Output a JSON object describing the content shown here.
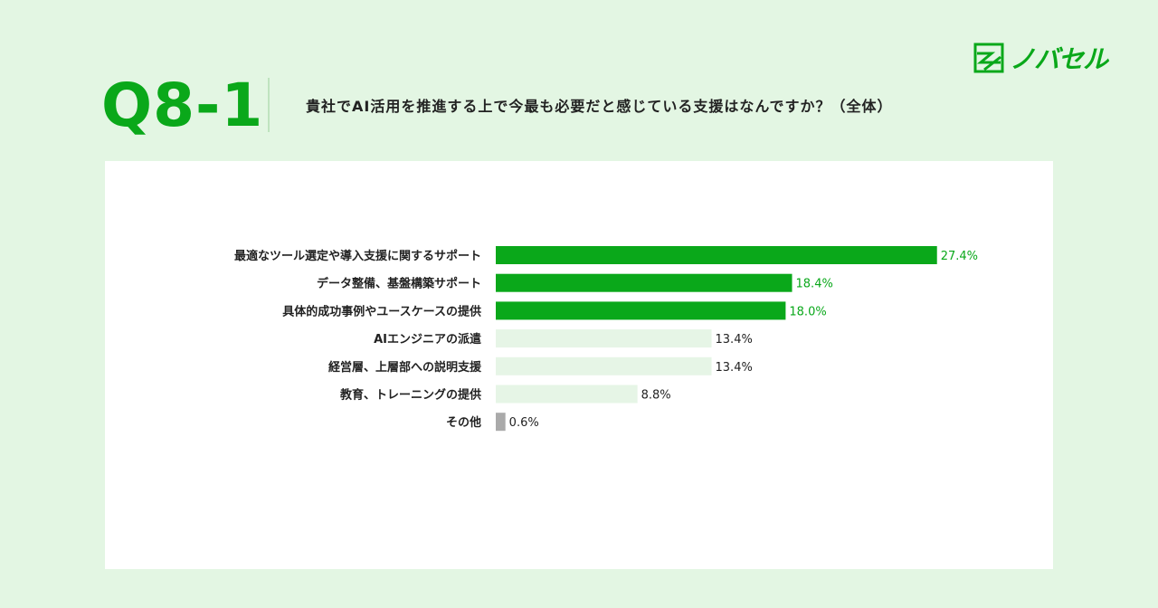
{
  "header": {
    "question_number": "Q8-1",
    "question": "貴社でAI活用を推進する上で今最も必要だと感じている支援はなんですか？（全体）",
    "logo_text": "ノバセル"
  },
  "colors": {
    "background": "#e3f6e3",
    "highlight": "#0aa81a",
    "normal": "#e6f5e6",
    "other": "#aaaaaa"
  },
  "chart_data": {
    "type": "bar",
    "orientation": "horizontal",
    "unit": "%",
    "categories": [
      "最適なツール選定や導入支援に関するサポート",
      "データ整備、基盤構築サポート",
      "具体的成功事例やユースケースの提供",
      "AIエンジニアの派遣",
      "経営層、上層部への説明支援",
      "教育、トレーニングの提供",
      "その他"
    ],
    "values": [
      27.4,
      18.4,
      18.0,
      13.4,
      13.4,
      8.8,
      0.6
    ],
    "value_labels": [
      "27.4%",
      "18.4%",
      "18.0%",
      "13.4%",
      "13.4%",
      "8.8%",
      "0.6%"
    ],
    "highlighted": [
      true,
      true,
      true,
      false,
      false,
      false,
      false
    ],
    "grid": false
  }
}
